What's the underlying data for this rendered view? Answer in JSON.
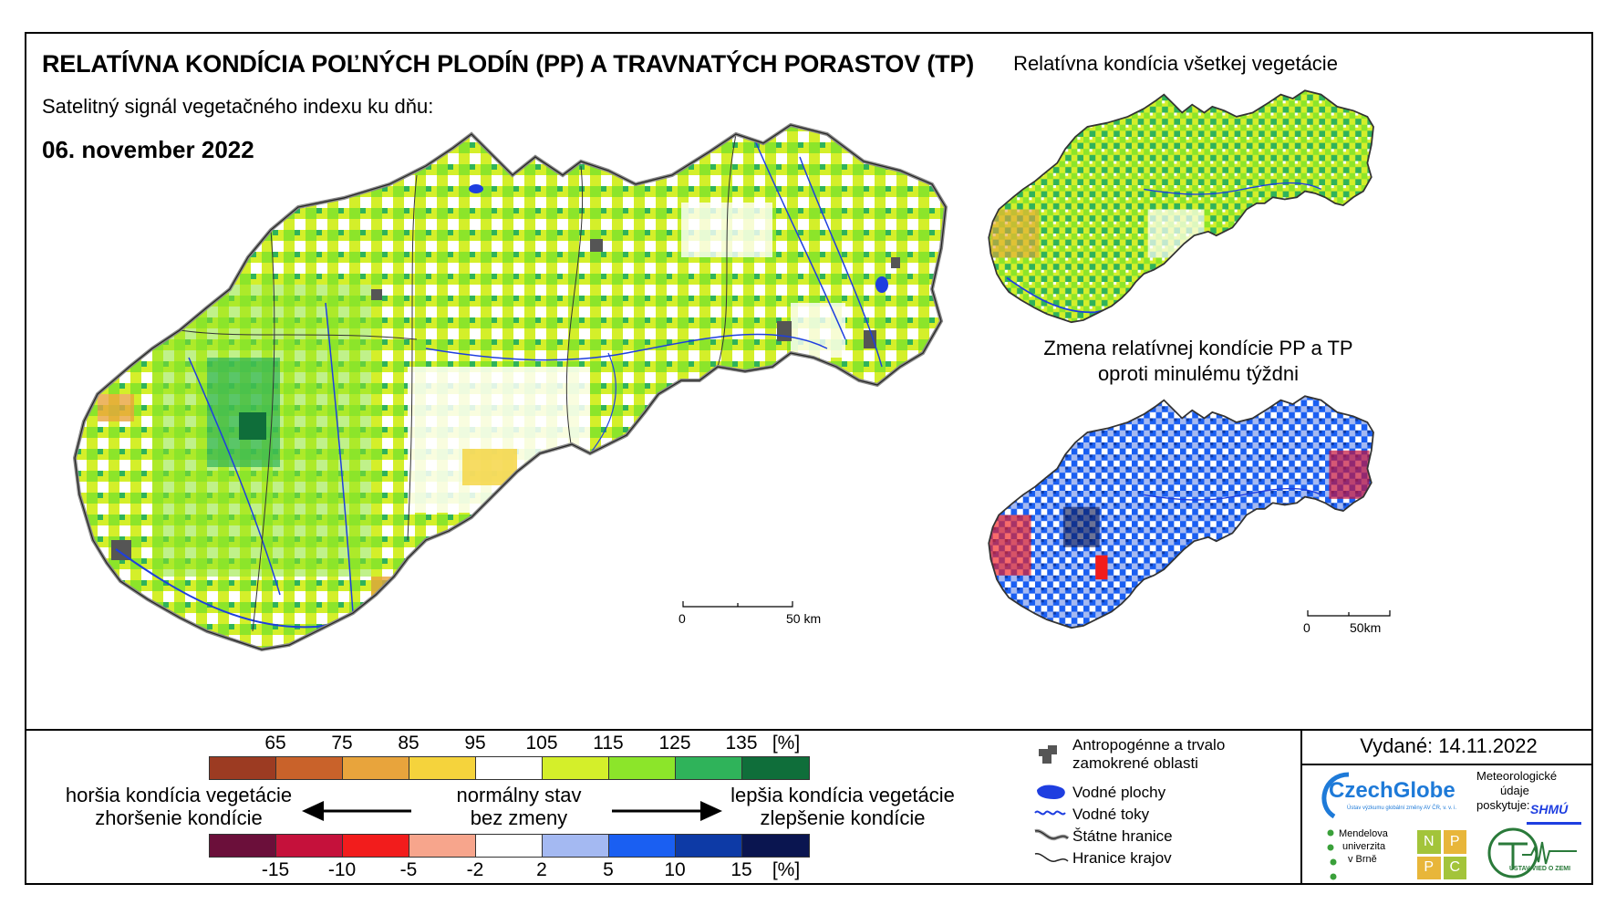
{
  "header": {
    "title": "RELATÍVNA KONDÍCIA POĽNÝCH PLODÍN (PP) A TRAVNATÝCH PORASTOV (TP)",
    "subtitle": "Satelitný signál vegetačného indexu ku dňu:",
    "date": "06. november 2022"
  },
  "side_maps": {
    "top_title": "Relatívna kondícia všetkej vegetácie",
    "bottom_title_line1": "Zmena relatívnej kondície PP a TP",
    "bottom_title_line2": "oproti minulému týždni"
  },
  "scale_bars": {
    "main": {
      "zero": "0",
      "end": "50 km"
    },
    "small": {
      "zero": "0",
      "end": "50km"
    }
  },
  "legend": {
    "condition_ticks": [
      "65",
      "75",
      "85",
      "95",
      "105",
      "115",
      "125",
      "135",
      "[%]"
    ],
    "condition_colors": [
      "#9c3b22",
      "#c9622a",
      "#e8a43c",
      "#f5d33c",
      "#ffffff",
      "#d4ef2a",
      "#8ce52a",
      "#2fb35a",
      "#0f6e3a"
    ],
    "change_ticks": [
      "-15",
      "-10",
      "-5",
      "-2",
      "2",
      "5",
      "10",
      "15",
      "[%]"
    ],
    "change_colors": [
      "#6b0f3a",
      "#c5113b",
      "#f21c1c",
      "#f7a58c",
      "#ffffff",
      "#a4b9f2",
      "#1a5ff2",
      "#0d3aa6",
      "#0a1550"
    ],
    "worse_line1": "horšia kondícia vegetácie",
    "worse_line2": "zhoršenie kondície",
    "normal_line1": "normálny stav",
    "normal_line2": "bez zmeny",
    "better_line1": "lepšia kondícia vegetácie",
    "better_line2": "zlepšenie kondície"
  },
  "map_key": {
    "urban": "Antropogénne a trvalo zamokrené oblasti",
    "water_bodies": "Vodné plochy",
    "rivers": "Vodné toky",
    "state_border": "Štátne hranice",
    "region_border": "Hranice krajov"
  },
  "issued": "Vydané: 14.11.2022",
  "logos": {
    "czechglobe": "CzechGlobe",
    "czechglobe_sub": "Ústav výzkumu globální změny AV ČR, v. v. i.",
    "meteo_line1": "Meteorologické",
    "meteo_line2": "údaje",
    "meteo_line3": "poskytuje:",
    "shmu": "SHMÚ",
    "mendel_line1": "Mendelova",
    "mendel_line2": "univerzita",
    "mendel_line3": "v Brně",
    "nppc": [
      "N",
      "P",
      "P",
      "C"
    ],
    "uvz": "ÚSTAV VIED O ZEMI"
  },
  "colors": {
    "water": "#1e3ee0",
    "urban": "#555555",
    "outline": "#333333"
  }
}
